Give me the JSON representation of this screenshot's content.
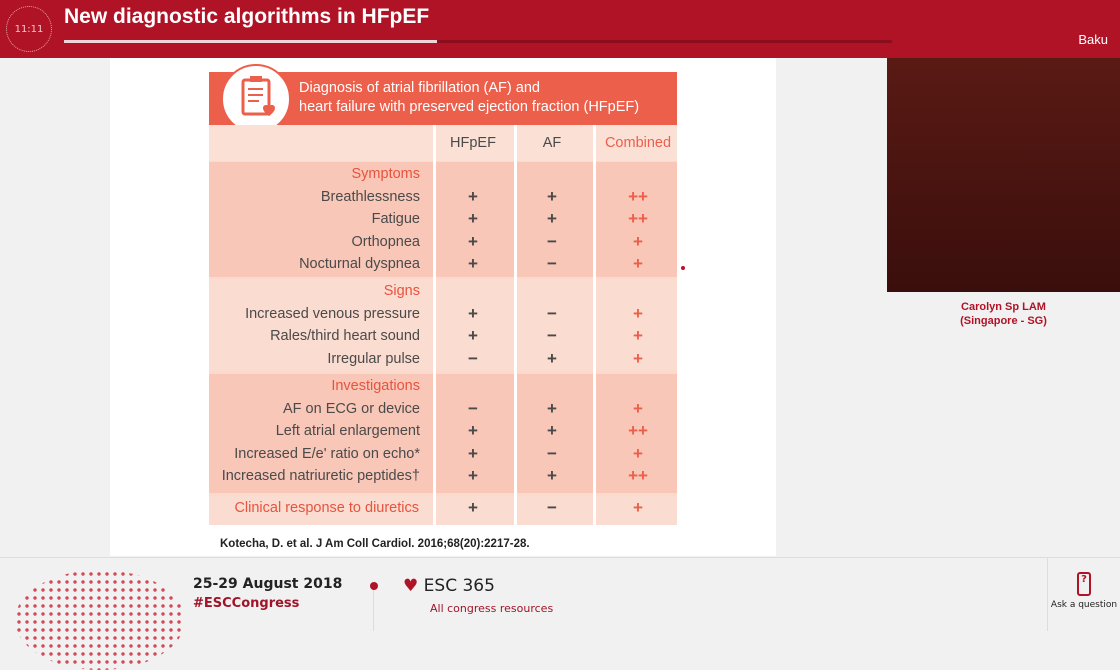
{
  "header": {
    "clock": "11:11",
    "title": "New diagnostic algorithms in HFpEF",
    "progress_percent": 45,
    "location": "Baku"
  },
  "slide": {
    "table_title": [
      "Diagnosis of atrial fibrillation (AF) and",
      "heart failure with preserved ejection fraction (HFpEF)"
    ],
    "columns": [
      "HFpEF",
      "AF",
      "Combined"
    ],
    "sections": [
      {
        "name": "Symptoms",
        "rows": [
          [
            "Breathlessness",
            "+",
            "+",
            "++"
          ],
          [
            "Fatigue",
            "+",
            "+",
            "++"
          ],
          [
            "Orthopnea",
            "+",
            "−",
            "+"
          ],
          [
            "Nocturnal dyspnea",
            "+",
            "−",
            "+"
          ]
        ]
      },
      {
        "name": "Signs",
        "rows": [
          [
            "Increased venous pressure",
            "+",
            "−",
            "+"
          ],
          [
            "Rales/third heart sound",
            "+",
            "−",
            "+"
          ],
          [
            "Irregular pulse",
            "−",
            "+",
            "+"
          ]
        ]
      },
      {
        "name": "Investigations",
        "rows": [
          [
            "AF on ECG or device",
            "−",
            "+",
            "+"
          ],
          [
            "Left atrial enlargement",
            "+",
            "+",
            "++"
          ],
          [
            "Increased E/e' ratio on echo*",
            "+",
            "−",
            "+"
          ],
          [
            "Increased natriuretic peptides†",
            "+",
            "+",
            "++"
          ]
        ]
      },
      {
        "name": "Clinical response to diuretics",
        "rows": [],
        "values": [
          "+",
          "−",
          "+"
        ]
      }
    ],
    "citation": "Kotecha, D. et al. J Am Coll Cardiol. 2016;68(20):2217-28."
  },
  "speaker": {
    "name": "Carolyn Sp LAM",
    "affiliation": "(Singapore - SG)"
  },
  "footer": {
    "dates": "25-29 August 2018",
    "hashtag": "#ESCCongress",
    "esc365": "ESC 365",
    "resources": "All congress resources",
    "ask": "Ask a question",
    "ask_icon": "?"
  }
}
